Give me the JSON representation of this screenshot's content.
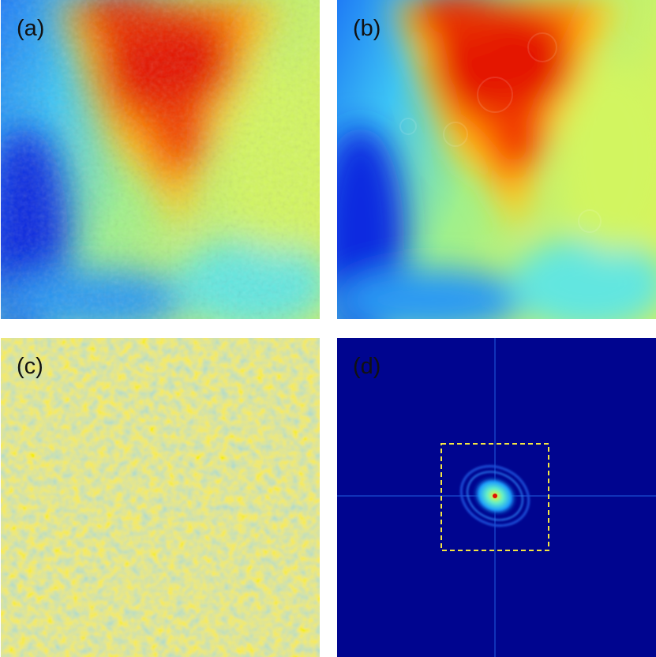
{
  "panels": [
    {
      "id": "a",
      "label": "(a)",
      "content": "heat-map-phase-raw"
    },
    {
      "id": "b",
      "label": "(b)",
      "content": "heat-map-phase-smoothed"
    },
    {
      "id": "c",
      "label": "(c)",
      "content": "heat-map-residual-noise"
    },
    {
      "id": "d",
      "label": "(d)",
      "content": "fourier-spectrum"
    }
  ],
  "colors": {
    "colormap_dark_blue": "#00008f",
    "colormap_blue": "#0050ff",
    "colormap_cyan": "#35d7f0",
    "colormap_yellow": "#f2f52c",
    "colormap_orange": "#ff9000",
    "colormap_red": "#e01000",
    "spectrum_background": "#00058f",
    "selection_box": "#f5e642"
  }
}
